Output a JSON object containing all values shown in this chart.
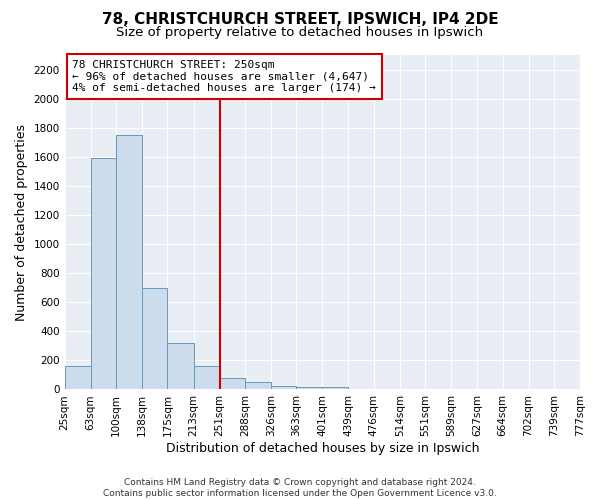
{
  "title": "78, CHRISTCHURCH STREET, IPSWICH, IP4 2DE",
  "subtitle": "Size of property relative to detached houses in Ipswich",
  "xlabel": "Distribution of detached houses by size in Ipswich",
  "ylabel": "Number of detached properties",
  "bar_color": "#ccdcec",
  "bar_edge_color": "#6699bb",
  "bin_edges": [
    25,
    63,
    100,
    138,
    175,
    213,
    251,
    288,
    326,
    363,
    401,
    439,
    476,
    514,
    551,
    589,
    627,
    664,
    702,
    739,
    777
  ],
  "bin_labels": [
    "25sqm",
    "63sqm",
    "100sqm",
    "138sqm",
    "175sqm",
    "213sqm",
    "251sqm",
    "288sqm",
    "326sqm",
    "363sqm",
    "401sqm",
    "439sqm",
    "476sqm",
    "514sqm",
    "551sqm",
    "589sqm",
    "627sqm",
    "664sqm",
    "702sqm",
    "739sqm",
    "777sqm"
  ],
  "counts": [
    160,
    1590,
    1750,
    700,
    320,
    160,
    80,
    50,
    25,
    15,
    15,
    0,
    0,
    0,
    0,
    0,
    0,
    0,
    0,
    0
  ],
  "red_line_x": 251,
  "ylim": [
    0,
    2300
  ],
  "yticks": [
    0,
    200,
    400,
    600,
    800,
    1000,
    1200,
    1400,
    1600,
    1800,
    2000,
    2200
  ],
  "annotation_line1": "78 CHRISTCHURCH STREET: 250sqm",
  "annotation_line2": "← 96% of detached houses are smaller (4,647)",
  "annotation_line3": "4% of semi-detached houses are larger (174) →",
  "vline_color": "#cc0000",
  "footer1": "Contains HM Land Registry data © Crown copyright and database right 2024.",
  "footer2": "Contains public sector information licensed under the Open Government Licence v3.0.",
  "bg_color": "#ffffff",
  "plot_bg_color": "#e8eef4",
  "grid_color": "#ffffff",
  "title_fontsize": 11,
  "subtitle_fontsize": 9.5,
  "axis_label_fontsize": 9,
  "tick_fontsize": 7.5,
  "footer_fontsize": 6.5
}
